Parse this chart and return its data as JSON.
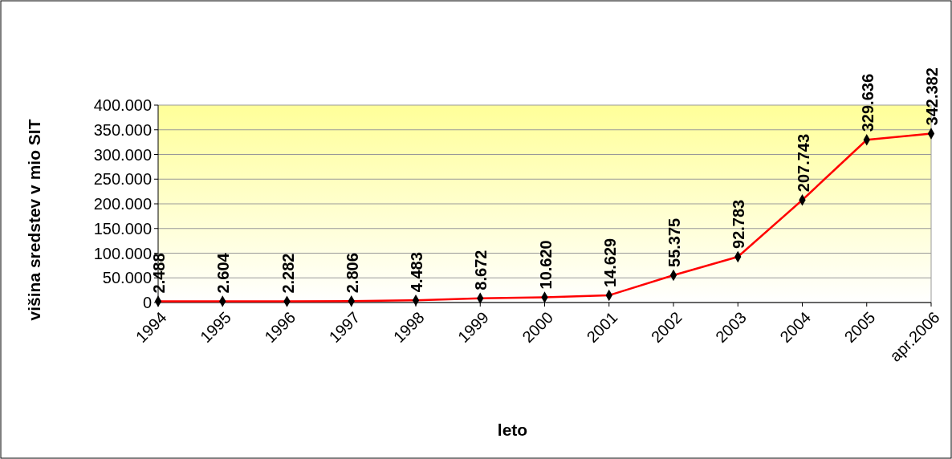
{
  "chart_data": {
    "type": "line",
    "xlabel": "leto",
    "ylabel": "višina sredstev v mio SIT",
    "categories": [
      "1994",
      "1995",
      "1996",
      "1997",
      "1998",
      "1999",
      "2000",
      "2001",
      "2002",
      "2003",
      "2004",
      "2005",
      "apr.2006"
    ],
    "series": [
      {
        "color": "#ff0000",
        "values": [
          2488,
          2604,
          2282,
          2806,
          4483,
          8672,
          10620,
          14629,
          55375,
          92783,
          207743,
          329636,
          342382
        ],
        "value_labels": [
          "2.488",
          "2.604",
          "2.282",
          "2.806",
          "4.483",
          "8.672",
          "10.620",
          "14.629",
          "55.375",
          "92.783",
          "207.743",
          "329.636",
          "342.382"
        ]
      }
    ],
    "ylim": [
      0,
      400000
    ],
    "yticks": [
      0,
      {
        "value": 50000,
        "label": "50.000"
      },
      {
        "value": 100000,
        "label": "100.000"
      },
      {
        "value": 150000,
        "label": "150.000"
      },
      {
        "value": 200000,
        "label": "200.000"
      },
      {
        "value": 250000,
        "label": "250.000"
      },
      {
        "value": 300000,
        "label": "300.000"
      },
      {
        "value": 350000,
        "label": "350.000"
      },
      {
        "value": 400000,
        "label": "400.000"
      }
    ],
    "grid": "y",
    "marker": "diamond",
    "line_style": "solid"
  }
}
